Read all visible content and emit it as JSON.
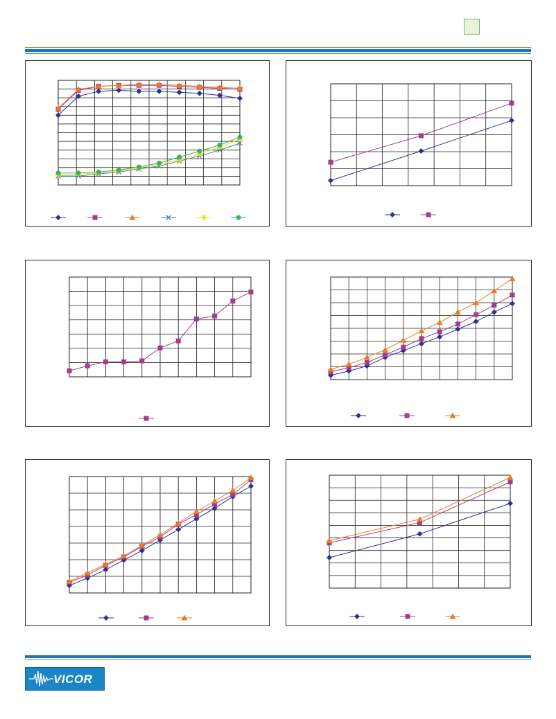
{
  "brand": {
    "logo_text": "VICOR",
    "accent": "#1f74b8",
    "green": "#6ea94a"
  },
  "chart_data": [
    {
      "type": "line",
      "series": [
        {
          "color": "#2e3192",
          "marker": "diamond",
          "values": [
            0.7,
            0.89,
            0.94,
            0.95,
            0.94,
            0.94,
            0.93,
            0.92,
            0.9,
            0.87
          ]
        },
        {
          "color": "#a23e8c",
          "marker": "square",
          "values": [
            0.76,
            0.95,
            0.99,
            1.0,
            1.0,
            1.0,
            0.99,
            0.98,
            0.97,
            0.96
          ]
        },
        {
          "color": "#f07b22",
          "marker": "triangle",
          "values": [
            0.77,
            0.96,
            0.99,
            1.0,
            1.01,
            1.01,
            1.0,
            0.99,
            0.98,
            0.97
          ]
        },
        {
          "color": "#4b7fc3",
          "marker": "x",
          "values": [
            0.09,
            0.09,
            0.11,
            0.13,
            0.16,
            0.19,
            0.24,
            0.29,
            0.35,
            0.42
          ]
        },
        {
          "color": "#f4e000",
          "marker": "star",
          "values": [
            0.1,
            0.11,
            0.12,
            0.14,
            0.17,
            0.21,
            0.25,
            0.31,
            0.38,
            0.46
          ]
        },
        {
          "color": "#3db35a",
          "marker": "circle",
          "values": [
            0.12,
            0.12,
            0.13,
            0.15,
            0.18,
            0.22,
            0.28,
            0.34,
            0.4,
            0.48
          ]
        }
      ]
    },
    {
      "type": "line",
      "series": [
        {
          "color": "#2e3192",
          "marker": "diamond",
          "values": [
            0.05,
            0.34,
            0.64
          ]
        },
        {
          "color": "#a23e8c",
          "marker": "square",
          "values": [
            0.23,
            0.49,
            0.81
          ]
        }
      ]
    },
    {
      "type": "line",
      "series": [
        {
          "color": "#a23e8c",
          "marker": "square",
          "values": [
            0.06,
            0.11,
            0.15,
            0.15,
            0.16,
            0.29,
            0.36,
            0.58,
            0.61,
            0.76,
            0.85
          ]
        }
      ]
    },
    {
      "type": "line",
      "series": [
        {
          "color": "#2e3192",
          "marker": "diamond",
          "values": [
            0.05,
            0.1,
            0.16,
            0.26,
            0.34,
            0.42,
            0.5,
            0.59,
            0.68,
            0.79,
            0.89
          ]
        },
        {
          "color": "#a23e8c",
          "marker": "square",
          "values": [
            0.09,
            0.14,
            0.2,
            0.29,
            0.38,
            0.48,
            0.56,
            0.65,
            0.76,
            0.87,
            0.99
          ]
        },
        {
          "color": "#f07b22",
          "marker": "triangle",
          "values": [
            0.12,
            0.18,
            0.26,
            0.35,
            0.46,
            0.57,
            0.67,
            0.79,
            0.9,
            1.04,
            1.18
          ]
        }
      ]
    },
    {
      "type": "line",
      "series": [
        {
          "color": "#2e3192",
          "marker": "diamond",
          "values": [
            0.07,
            0.14,
            0.22,
            0.31,
            0.4,
            0.5,
            0.6,
            0.7,
            0.8,
            0.91,
            1.01
          ]
        },
        {
          "color": "#a23e8c",
          "marker": "square",
          "values": [
            0.1,
            0.17,
            0.26,
            0.34,
            0.44,
            0.53,
            0.65,
            0.74,
            0.84,
            0.93,
            1.07
          ]
        },
        {
          "color": "#f07b22",
          "marker": "triangle",
          "values": [
            0.11,
            0.19,
            0.27,
            0.35,
            0.45,
            0.55,
            0.66,
            0.77,
            0.87,
            0.97,
            1.09
          ]
        }
      ]
    },
    {
      "type": "line",
      "series": [
        {
          "color": "#2e3192",
          "marker": "diamond",
          "values": [
            0.27,
            0.48,
            0.75
          ]
        },
        {
          "color": "#a23e8c",
          "marker": "square",
          "values": [
            0.4,
            0.58,
            0.94
          ]
        },
        {
          "color": "#f07b22",
          "marker": "triangle",
          "values": [
            0.42,
            0.61,
            0.98
          ]
        }
      ]
    }
  ]
}
